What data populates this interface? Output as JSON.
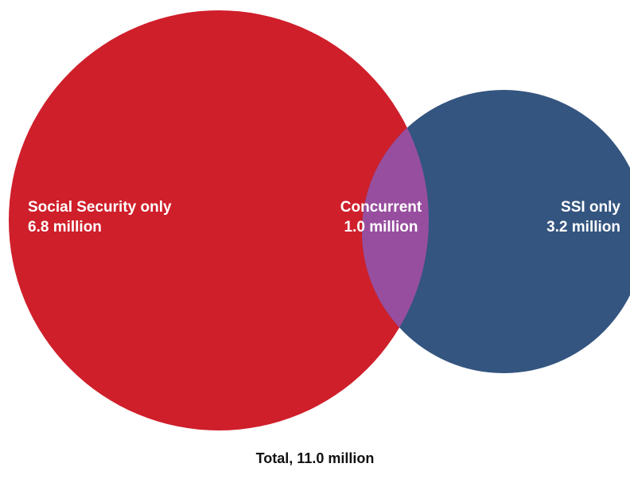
{
  "colors": {
    "social_security": "#cf1f2a",
    "ssi": "#34557f",
    "concurrent": "#984e9f",
    "label_text": "#ffffff",
    "total_text": "#111111"
  },
  "groups": {
    "social_security": {
      "name": "Social Security only",
      "value": "6.8 million"
    },
    "concurrent": {
      "name": "Concurrent",
      "value": "1.0 million"
    },
    "ssi": {
      "name": "SSI only",
      "value": "3.2 million"
    }
  },
  "total": "Total, 11.0 million"
}
